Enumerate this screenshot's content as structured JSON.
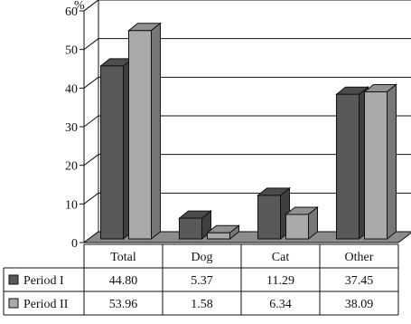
{
  "chart_data": {
    "type": "bar",
    "style": "3d-column",
    "categories": [
      "Total",
      "Dog",
      "Cat",
      "Other"
    ],
    "series": [
      {
        "name": "Period I",
        "values": [
          44.8,
          5.37,
          11.29,
          37.45
        ],
        "color": "#595959"
      },
      {
        "name": "Period II",
        "values": [
          53.96,
          1.58,
          6.34,
          38.09
        ],
        "color": "#aaaaaa"
      }
    ],
    "value_labels": [
      [
        "44.80",
        "5.37",
        "11.29",
        "37.45"
      ],
      [
        "53.96",
        "1.58",
        "6.34",
        "38.09"
      ]
    ],
    "y_unit": "%",
    "ylim": [
      0,
      60
    ],
    "yticks": [
      0,
      10,
      20,
      30,
      40,
      50,
      60
    ],
    "grid": true,
    "legend": "data-table-below"
  }
}
